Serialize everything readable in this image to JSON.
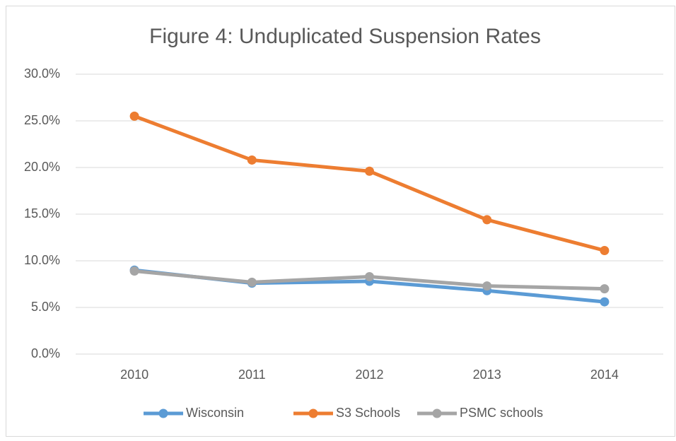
{
  "chart_data": {
    "type": "line",
    "title": "Figure 4:  Unduplicated Suspension Rates",
    "categories": [
      "2010",
      "2011",
      "2012",
      "2013",
      "2014"
    ],
    "series": [
      {
        "name": "Wisconsin",
        "color": "#5b9bd5",
        "values": [
          9.0,
          7.6,
          7.8,
          6.8,
          5.6
        ]
      },
      {
        "name": "S3 Schools",
        "color": "#ed7d31",
        "values": [
          25.5,
          20.8,
          19.6,
          14.4,
          11.1
        ]
      },
      {
        "name": "PSMC schools",
        "color": "#a5a5a5",
        "values": [
          8.9,
          7.7,
          8.3,
          7.3,
          7.0
        ]
      }
    ],
    "ylim": [
      0,
      30
    ],
    "yticks": [
      {
        "value": 0,
        "label": "0.0%"
      },
      {
        "value": 5,
        "label": "5.0%"
      },
      {
        "value": 10,
        "label": "10.0%"
      },
      {
        "value": 15,
        "label": "15.0%"
      },
      {
        "value": 20,
        "label": "20.0%"
      },
      {
        "value": 25,
        "label": "25.0%"
      },
      {
        "value": 30,
        "label": "30.0%"
      }
    ],
    "grid": true,
    "legend": "bottom"
  }
}
